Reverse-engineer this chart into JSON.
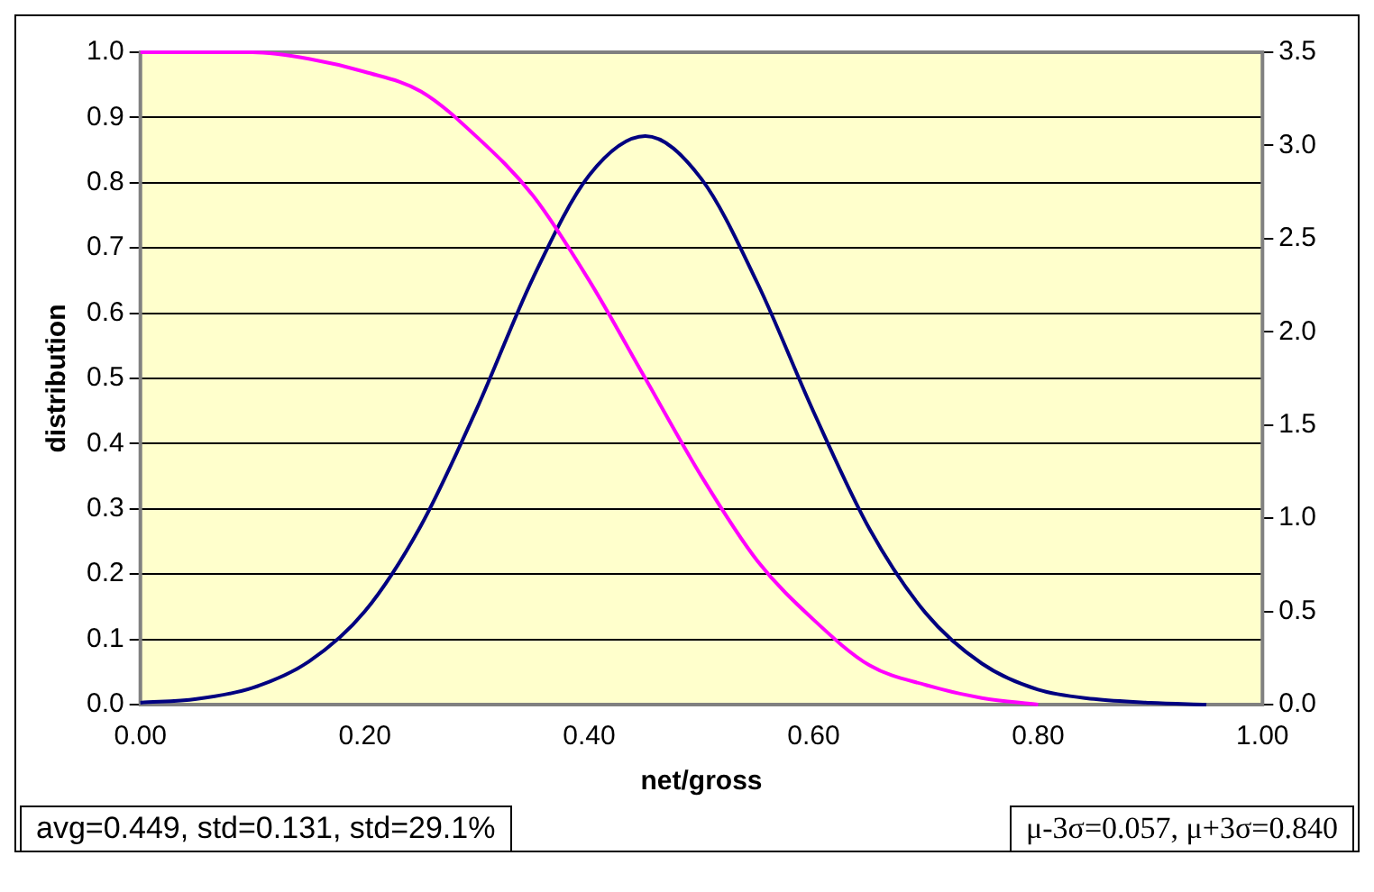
{
  "chart_data": {
    "type": "line",
    "xlabel": "net/gross",
    "ylabel": "distribution",
    "x": [
      0,
      0.05,
      0.1,
      0.15,
      0.2,
      0.25,
      0.3,
      0.35,
      0.4,
      0.45,
      0.5,
      0.55,
      0.6,
      0.65,
      0.7,
      0.75,
      0.8,
      0.85,
      0.9,
      0.95
    ],
    "series": [
      {
        "color": "#ff00ff",
        "values": [
          1.0,
          1.0,
          1.0,
          0.99,
          0.97,
          0.94,
          0.87,
          0.78,
          0.65,
          0.5,
          0.35,
          0.22,
          0.13,
          0.06,
          0.03,
          0.01,
          0.0,
          null,
          null,
          null
        ]
      },
      {
        "color": "#000080",
        "axis": "y2",
        "values": [
          0.01,
          0.03,
          0.09,
          0.23,
          0.5,
          0.96,
          1.59,
          2.29,
          2.84,
          3.05,
          2.82,
          2.26,
          1.57,
          0.94,
          0.49,
          0.22,
          0.08,
          0.03,
          0.01,
          0.0
        ]
      }
    ],
    "xlim": [
      0,
      1
    ],
    "xticks": [
      {
        "value": 0,
        "label": "0.00"
      },
      {
        "value": 0.2,
        "label": "0.20"
      },
      {
        "value": 0.4,
        "label": "0.40"
      },
      {
        "value": 0.6,
        "label": "0.60"
      },
      {
        "value": 0.8,
        "label": "0.80"
      },
      {
        "value": 1,
        "label": "1.00"
      }
    ],
    "ylim": [
      0,
      1
    ],
    "yticks": [
      {
        "value": 0,
        "label": "0.0"
      },
      {
        "value": 0.1,
        "label": "0.1"
      },
      {
        "value": 0.2,
        "label": "0.2"
      },
      {
        "value": 0.3,
        "label": "0.3"
      },
      {
        "value": 0.4,
        "label": "0.4"
      },
      {
        "value": 0.5,
        "label": "0.5"
      },
      {
        "value": 0.6,
        "label": "0.6"
      },
      {
        "value": 0.7,
        "label": "0.7"
      },
      {
        "value": 0.8,
        "label": "0.8"
      },
      {
        "value": 0.9,
        "label": "0.9"
      },
      {
        "value": 1,
        "label": "1.0"
      }
    ],
    "y2lim": [
      0,
      3.5
    ],
    "y2ticks": [
      {
        "value": 0,
        "label": "0.0"
      },
      {
        "value": 0.5,
        "label": "0.5"
      },
      {
        "value": 1,
        "label": "1.0"
      },
      {
        "value": 1.5,
        "label": "1.5"
      },
      {
        "value": 2,
        "label": "2.0"
      },
      {
        "value": 2.5,
        "label": "2.5"
      },
      {
        "value": 3,
        "label": "3.0"
      },
      {
        "value": 3.5,
        "label": "3.5"
      }
    ],
    "grid": "y",
    "legend": false,
    "marker": "none",
    "line_style": "solid",
    "annotations": [
      "avg=0.449, std=0.131, std=29.1%",
      "μ-3σ=0.057, μ+3σ=0.840"
    ]
  }
}
